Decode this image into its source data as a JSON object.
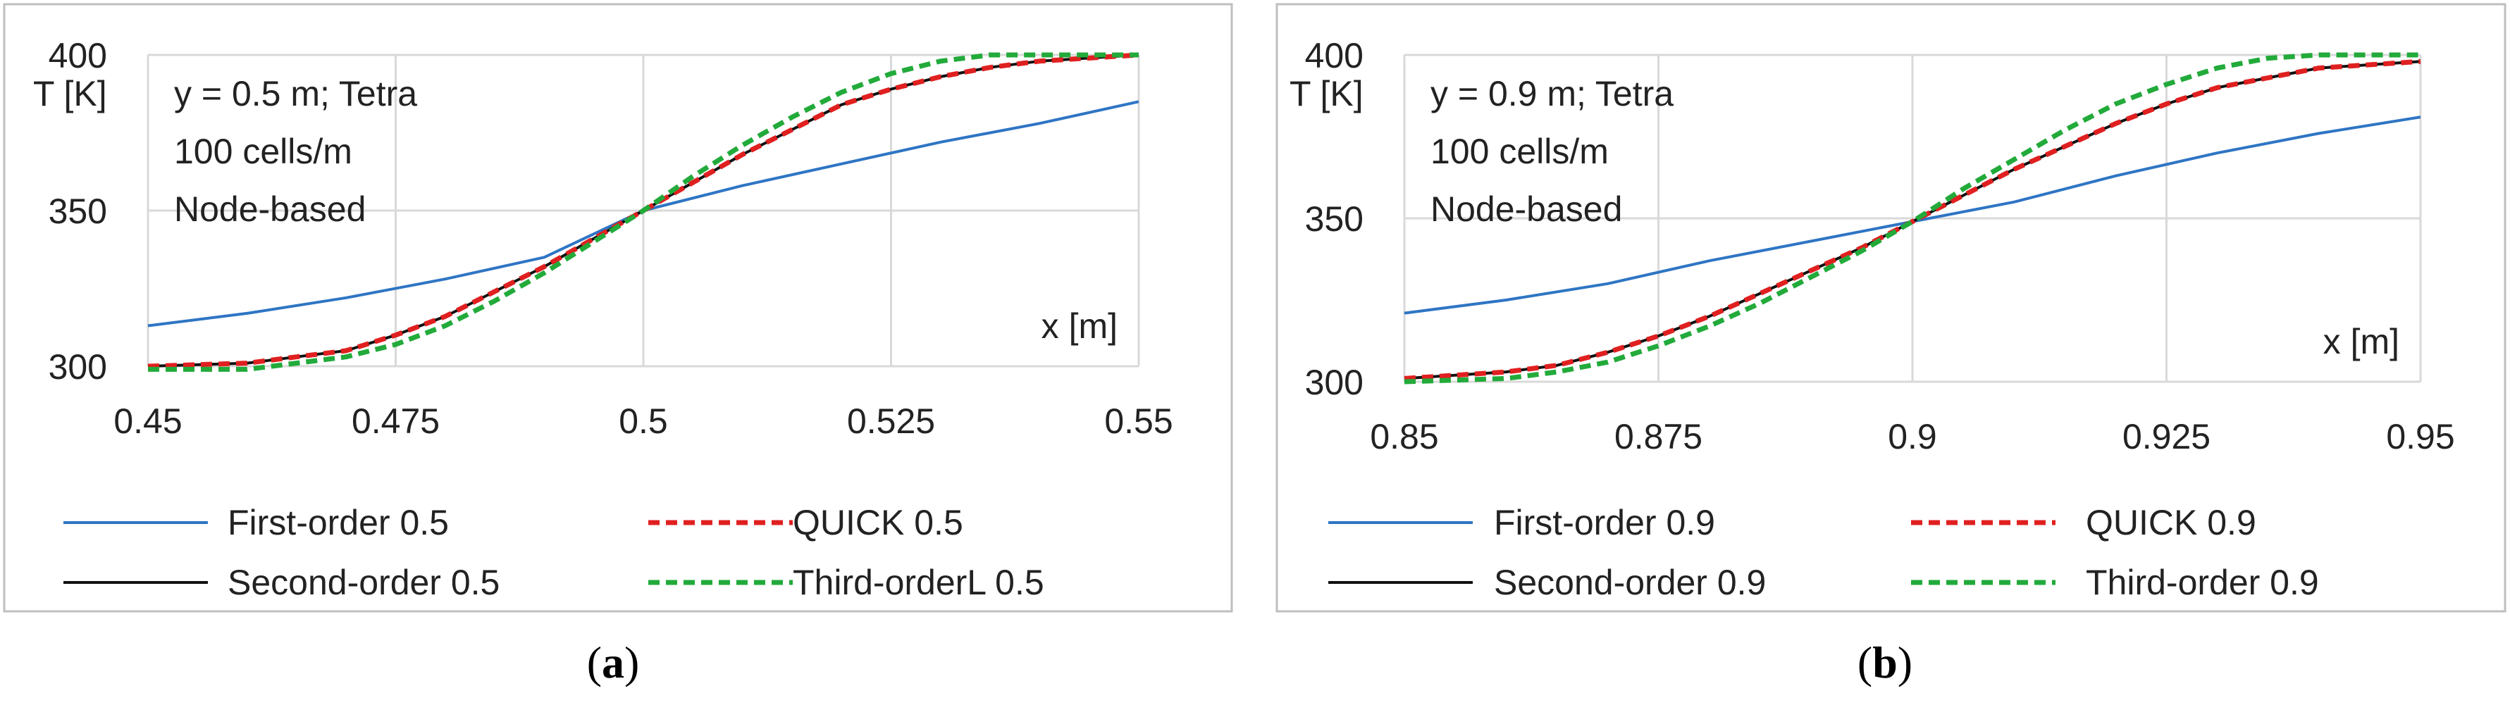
{
  "chart_data": [
    {
      "id": "a",
      "type": "line",
      "caption_open": "(",
      "caption_letter": "a",
      "caption_close": ")",
      "ylabel": "T [K]",
      "xlabel": "x [m]",
      "annotation": [
        "y = 0.5 m; Tetra",
        "100 cells/m",
        "Node-based"
      ],
      "xlim": [
        0.45,
        0.55
      ],
      "ylim": [
        300,
        400
      ],
      "xticks": [
        0.45,
        0.475,
        0.5,
        0.525,
        0.55
      ],
      "xtick_labels": [
        "0.45",
        "0.475",
        "0.5",
        "0.525",
        "0.55"
      ],
      "yticks": [
        300,
        350,
        400
      ],
      "ytick_labels": [
        "300",
        "350",
        "400"
      ],
      "grid": true,
      "legend_position": "bottom",
      "series": [
        {
          "name": "First-order 0.5",
          "color": "#2e75c4",
          "dash": "solid",
          "x": [
            0.45,
            0.46,
            0.47,
            0.48,
            0.49,
            0.5,
            0.51,
            0.52,
            0.53,
            0.54,
            0.55
          ],
          "y": [
            313,
            317,
            322,
            328,
            335,
            350,
            358,
            365,
            372,
            378,
            385
          ]
        },
        {
          "name": "QUICK 0.5",
          "color": "#e02020",
          "dash": "dashed",
          "x": [
            0.45,
            0.46,
            0.465,
            0.47,
            0.475,
            0.48,
            0.485,
            0.49,
            0.495,
            0.5,
            0.505,
            0.51,
            0.515,
            0.52,
            0.525,
            0.53,
            0.535,
            0.54,
            0.55
          ],
          "y": [
            300,
            301,
            303,
            305,
            310,
            316,
            324,
            332,
            341,
            350,
            359,
            368,
            376,
            384,
            389,
            393,
            396,
            398,
            400
          ]
        },
        {
          "name": "Second-order 0.5",
          "color": "#111111",
          "dash": "solid",
          "x": [
            0.45,
            0.46,
            0.465,
            0.47,
            0.475,
            0.48,
            0.485,
            0.49,
            0.495,
            0.5,
            0.505,
            0.51,
            0.515,
            0.52,
            0.525,
            0.53,
            0.535,
            0.54,
            0.55
          ],
          "y": [
            300,
            301,
            303,
            305,
            310,
            316,
            324,
            332,
            341,
            350,
            359,
            368,
            376,
            384,
            389,
            393,
            396,
            398,
            400
          ]
        },
        {
          "name": "Third-orderL 0.5",
          "color": "#22aa3a",
          "dash": "dashed",
          "x": [
            0.45,
            0.46,
            0.465,
            0.47,
            0.475,
            0.48,
            0.485,
            0.49,
            0.495,
            0.5,
            0.505,
            0.51,
            0.515,
            0.52,
            0.525,
            0.53,
            0.535,
            0.54,
            0.55
          ],
          "y": [
            299,
            299,
            301,
            303,
            307,
            313,
            321,
            330,
            340,
            350,
            361,
            371,
            380,
            388,
            394,
            398,
            400,
            400,
            400
          ]
        }
      ],
      "legend": [
        "First-order 0.5",
        "QUICK 0.5",
        "Second-order 0.5",
        "Third-orderL 0.5"
      ]
    },
    {
      "id": "b",
      "type": "line",
      "caption_open": "(",
      "caption_letter": "b",
      "caption_close": ")",
      "ylabel": "T [K]",
      "xlabel": "x [m]",
      "annotation": [
        "y = 0.9 m; Tetra",
        "100 cells/m",
        "Node-based"
      ],
      "xlim": [
        0.85,
        0.95
      ],
      "ylim": [
        300,
        400
      ],
      "xticks": [
        0.85,
        0.875,
        0.9,
        0.925,
        0.95
      ],
      "xtick_labels": [
        "0.85",
        "0.875",
        "0.9",
        "0.925",
        "0.95"
      ],
      "yticks": [
        300,
        350,
        400
      ],
      "ytick_labels": [
        "300",
        "350",
        "400"
      ],
      "grid": true,
      "legend_position": "bottom",
      "series": [
        {
          "name": "First-order 0.9",
          "color": "#2e75c4",
          "dash": "solid",
          "x": [
            0.85,
            0.86,
            0.87,
            0.88,
            0.89,
            0.9,
            0.91,
            0.92,
            0.93,
            0.94,
            0.95
          ],
          "y": [
            321,
            325,
            330,
            337,
            343,
            349,
            355,
            363,
            370,
            376,
            381
          ]
        },
        {
          "name": "QUICK 0.9",
          "color": "#e02020",
          "dash": "dashed",
          "x": [
            0.85,
            0.86,
            0.865,
            0.87,
            0.875,
            0.88,
            0.885,
            0.89,
            0.895,
            0.9,
            0.905,
            0.91,
            0.915,
            0.92,
            0.925,
            0.93,
            0.935,
            0.94,
            0.95
          ],
          "y": [
            301,
            303,
            305,
            309,
            314,
            320,
            327,
            334,
            341,
            349,
            357,
            365,
            372,
            379,
            385,
            390,
            393,
            396,
            398
          ]
        },
        {
          "name": "Second-order 0.9",
          "color": "#111111",
          "dash": "solid",
          "x": [
            0.85,
            0.86,
            0.865,
            0.87,
            0.875,
            0.88,
            0.885,
            0.89,
            0.895,
            0.9,
            0.905,
            0.91,
            0.915,
            0.92,
            0.925,
            0.93,
            0.935,
            0.94,
            0.95
          ],
          "y": [
            301,
            303,
            305,
            309,
            314,
            320,
            327,
            334,
            341,
            349,
            357,
            365,
            372,
            379,
            385,
            390,
            393,
            396,
            398
          ]
        },
        {
          "name": "Third-order 0.9",
          "color": "#22aa3a",
          "dash": "dashed",
          "x": [
            0.85,
            0.86,
            0.865,
            0.87,
            0.875,
            0.88,
            0.885,
            0.89,
            0.895,
            0.9,
            0.905,
            0.91,
            0.915,
            0.92,
            0.925,
            0.93,
            0.935,
            0.94,
            0.95
          ],
          "y": [
            300,
            301,
            303,
            306,
            311,
            317,
            324,
            332,
            340,
            349,
            359,
            368,
            377,
            385,
            391,
            396,
            399,
            400,
            400
          ]
        }
      ],
      "legend": [
        "First-order 0.9",
        "QUICK 0.9",
        "Second-order 0.9",
        "Third-order 0.9"
      ]
    }
  ]
}
